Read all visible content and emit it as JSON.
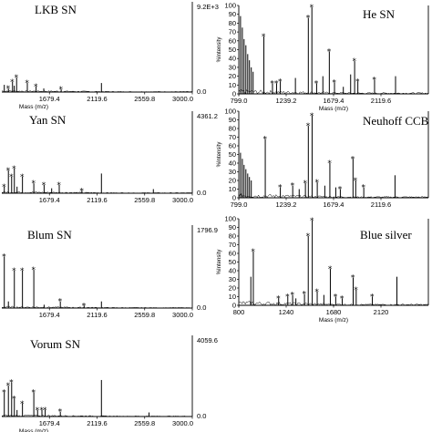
{
  "chart_data": [
    {
      "type": "line",
      "title": "LKB SN",
      "xlabel": "Mass (m/z)",
      "ylabel": "",
      "max_label": "9.2E+3",
      "xlim": [
        1239.2,
        3000.0
      ],
      "ylim": [
        0,
        100
      ],
      "xticks": [
        "1679.4",
        "2119.6",
        "2559.8",
        "3000.0"
      ],
      "yticks": [],
      "peaks": [
        {
          "x": 1262,
          "y": 8,
          "star": false
        },
        {
          "x": 1300,
          "y": 4,
          "star": true
        },
        {
          "x": 1338,
          "y": 11,
          "star": true
        },
        {
          "x": 1354,
          "y": 7,
          "star": false
        },
        {
          "x": 1376,
          "y": 16,
          "star": true
        },
        {
          "x": 1475,
          "y": 10,
          "star": true
        },
        {
          "x": 1556,
          "y": 6,
          "star": true
        },
        {
          "x": 1627,
          "y": 4,
          "star": false
        },
        {
          "x": 1788,
          "y": 3,
          "star": true
        },
        {
          "x": 2160,
          "y": 10,
          "star": false
        }
      ]
    },
    {
      "type": "line",
      "title": "He SN",
      "xlabel": "Mass (m/z)",
      "ylabel": "%Intensity",
      "max_label": "",
      "xlim": [
        799.0,
        2559.8
      ],
      "ylim": [
        0,
        100
      ],
      "xticks": [
        "799.0",
        "1239.2",
        "1679.4",
        "2119.6"
      ],
      "yticks": [
        "0",
        "10",
        "20",
        "30",
        "40",
        "50",
        "60",
        "70",
        "80",
        "90",
        "100"
      ],
      "peaks": [
        {
          "x": 815,
          "y": 88,
          "star": false
        },
        {
          "x": 832,
          "y": 75,
          "star": false
        },
        {
          "x": 848,
          "y": 62,
          "star": false
        },
        {
          "x": 865,
          "y": 55,
          "star": false
        },
        {
          "x": 882,
          "y": 45,
          "star": false
        },
        {
          "x": 898,
          "y": 38,
          "star": false
        },
        {
          "x": 915,
          "y": 30,
          "star": false
        },
        {
          "x": 932,
          "y": 25,
          "star": false
        },
        {
          "x": 1032,
          "y": 65,
          "star": true
        },
        {
          "x": 1112,
          "y": 12,
          "star": true
        },
        {
          "x": 1150,
          "y": 12,
          "star": true
        },
        {
          "x": 1185,
          "y": 14,
          "star": true
        },
        {
          "x": 1325,
          "y": 18,
          "star": false
        },
        {
          "x": 1445,
          "y": 86,
          "star": true
        },
        {
          "x": 1478,
          "y": 98,
          "star": true
        },
        {
          "x": 1522,
          "y": 12,
          "star": true
        },
        {
          "x": 1580,
          "y": 20,
          "star": false
        },
        {
          "x": 1640,
          "y": 48,
          "star": true
        },
        {
          "x": 1688,
          "y": 13,
          "star": true
        },
        {
          "x": 1770,
          "y": 8,
          "star": false
        },
        {
          "x": 1838,
          "y": 22,
          "star": false
        },
        {
          "x": 1875,
          "y": 37,
          "star": true
        },
        {
          "x": 1905,
          "y": 14,
          "star": true
        },
        {
          "x": 2060,
          "y": 16,
          "star": true
        },
        {
          "x": 2255,
          "y": 20,
          "star": false
        }
      ]
    },
    {
      "type": "line",
      "title": "Yan SN",
      "xlabel": "",
      "ylabel": "",
      "max_label": "4361.2",
      "xlim": [
        1239.2,
        3000.0
      ],
      "ylim": [
        0,
        100
      ],
      "xticks": [
        "1679.4",
        "2119.6",
        "2559.8",
        "3000.0"
      ],
      "yticks": [],
      "peaks": [
        {
          "x": 1262,
          "y": 8,
          "star": true
        },
        {
          "x": 1300,
          "y": 28,
          "star": true
        },
        {
          "x": 1330,
          "y": 20,
          "star": true
        },
        {
          "x": 1355,
          "y": 30,
          "star": true
        },
        {
          "x": 1380,
          "y": 8,
          "star": false
        },
        {
          "x": 1430,
          "y": 20,
          "star": true
        },
        {
          "x": 1535,
          "y": 12,
          "star": true
        },
        {
          "x": 1630,
          "y": 10,
          "star": true
        },
        {
          "x": 1700,
          "y": 6,
          "star": false
        },
        {
          "x": 1770,
          "y": 10,
          "star": true
        },
        {
          "x": 1980,
          "y": 3,
          "star": true
        },
        {
          "x": 2160,
          "y": 24,
          "star": false
        },
        {
          "x": 2640,
          "y": 5,
          "star": false
        }
      ]
    },
    {
      "type": "line",
      "title": "Neuhoff CCB",
      "xlabel": "",
      "ylabel": "%Intensity",
      "max_label": "",
      "xlim": [
        799.0,
        2559.8
      ],
      "ylim": [
        0,
        100
      ],
      "xticks": [
        "799.0",
        "1239.2",
        "1679.4",
        "2119.6"
      ],
      "yticks": [
        "0",
        "10",
        "20",
        "30",
        "40",
        "50",
        "60",
        "70",
        "80",
        "90",
        "100"
      ],
      "peaks": [
        {
          "x": 815,
          "y": 52,
          "star": false
        },
        {
          "x": 832,
          "y": 45,
          "star": false
        },
        {
          "x": 848,
          "y": 38,
          "star": false
        },
        {
          "x": 865,
          "y": 33,
          "star": false
        },
        {
          "x": 882,
          "y": 28,
          "star": false
        },
        {
          "x": 898,
          "y": 24,
          "star": false
        },
        {
          "x": 915,
          "y": 20,
          "star": false
        },
        {
          "x": 1045,
          "y": 68,
          "star": true
        },
        {
          "x": 1185,
          "y": 12,
          "star": true
        },
        {
          "x": 1300,
          "y": 14,
          "star": true
        },
        {
          "x": 1360,
          "y": 10,
          "star": false
        },
        {
          "x": 1418,
          "y": 17,
          "star": true
        },
        {
          "x": 1445,
          "y": 83,
          "star": true
        },
        {
          "x": 1480,
          "y": 95,
          "star": true
        },
        {
          "x": 1528,
          "y": 18,
          "star": true
        },
        {
          "x": 1598,
          "y": 14,
          "star": false
        },
        {
          "x": 1645,
          "y": 40,
          "star": true
        },
        {
          "x": 1700,
          "y": 12,
          "star": false
        },
        {
          "x": 1742,
          "y": 10,
          "star": true
        },
        {
          "x": 1860,
          "y": 45,
          "star": true
        },
        {
          "x": 1885,
          "y": 20,
          "star": true
        },
        {
          "x": 1960,
          "y": 12,
          "star": true
        },
        {
          "x": 2250,
          "y": 26,
          "star": false
        }
      ]
    },
    {
      "type": "line",
      "title": "Blum SN",
      "xlabel": "",
      "ylabel": "",
      "max_label": "1796.9",
      "xlim": [
        1239.2,
        3000.0
      ],
      "ylim": [
        0,
        100
      ],
      "xticks": [
        "1679.4",
        "2119.6",
        "2559.8",
        "3000.0"
      ],
      "yticks": [],
      "peaks": [
        {
          "x": 1262,
          "y": 62,
          "star": true
        },
        {
          "x": 1300,
          "y": 8,
          "star": false
        },
        {
          "x": 1355,
          "y": 45,
          "star": true
        },
        {
          "x": 1430,
          "y": 45,
          "star": true
        },
        {
          "x": 1535,
          "y": 46,
          "star": true
        },
        {
          "x": 1630,
          "y": 4,
          "star": false
        },
        {
          "x": 1780,
          "y": 8,
          "star": true
        },
        {
          "x": 2000,
          "y": 3,
          "star": true
        },
        {
          "x": 2160,
          "y": 8,
          "star": false
        }
      ]
    },
    {
      "type": "line",
      "title": "Blue silver",
      "xlabel": "Mass (m/z)",
      "ylabel": "%Intensity",
      "max_label": "",
      "xlim": [
        800,
        2560
      ],
      "ylim": [
        0,
        100
      ],
      "xticks": [
        "800",
        "1240",
        "1680",
        "2120"
      ],
      "yticks": [
        "0",
        "10",
        "20",
        "30",
        "40",
        "50",
        "60",
        "70",
        "80",
        "90",
        "100"
      ],
      "peaks": [
        {
          "x": 912,
          "y": 33,
          "star": false
        },
        {
          "x": 935,
          "y": 62,
          "star": true
        },
        {
          "x": 1170,
          "y": 8,
          "star": true
        },
        {
          "x": 1255,
          "y": 10,
          "star": true
        },
        {
          "x": 1300,
          "y": 12,
          "star": true
        },
        {
          "x": 1330,
          "y": 8,
          "star": false
        },
        {
          "x": 1410,
          "y": 13,
          "star": true
        },
        {
          "x": 1445,
          "y": 80,
          "star": true
        },
        {
          "x": 1482,
          "y": 98,
          "star": true
        },
        {
          "x": 1528,
          "y": 16,
          "star": true
        },
        {
          "x": 1590,
          "y": 12,
          "star": false
        },
        {
          "x": 1650,
          "y": 42,
          "star": true
        },
        {
          "x": 1700,
          "y": 10,
          "star": true
        },
        {
          "x": 1760,
          "y": 8,
          "star": true
        },
        {
          "x": 1862,
          "y": 32,
          "star": true
        },
        {
          "x": 1890,
          "y": 18,
          "star": true
        },
        {
          "x": 2040,
          "y": 10,
          "star": true
        },
        {
          "x": 2268,
          "y": 33,
          "star": false
        }
      ]
    },
    {
      "type": "line",
      "title": "Vorum SN",
      "xlabel": "Mass (m/z)",
      "ylabel": "",
      "max_label": "4059.6",
      "xlim": [
        1239.2,
        3000.0
      ],
      "ylim": [
        0,
        100
      ],
      "xticks": [
        "1679.4",
        "2119.6",
        "2559.8",
        "3000.0"
      ],
      "yticks": [],
      "peaks": [
        {
          "x": 1262,
          "y": 30,
          "star": true
        },
        {
          "x": 1300,
          "y": 38,
          "star": true
        },
        {
          "x": 1330,
          "y": 42,
          "star": true
        },
        {
          "x": 1355,
          "y": 22,
          "star": true
        },
        {
          "x": 1380,
          "y": 8,
          "star": false
        },
        {
          "x": 1430,
          "y": 16,
          "star": true
        },
        {
          "x": 1535,
          "y": 30,
          "star": true
        },
        {
          "x": 1570,
          "y": 8,
          "star": true
        },
        {
          "x": 1610,
          "y": 8,
          "star": true
        },
        {
          "x": 1640,
          "y": 8,
          "star": true
        },
        {
          "x": 1780,
          "y": 6,
          "star": true
        },
        {
          "x": 2160,
          "y": 45,
          "star": false
        },
        {
          "x": 2600,
          "y": 5,
          "star": false
        }
      ]
    }
  ]
}
